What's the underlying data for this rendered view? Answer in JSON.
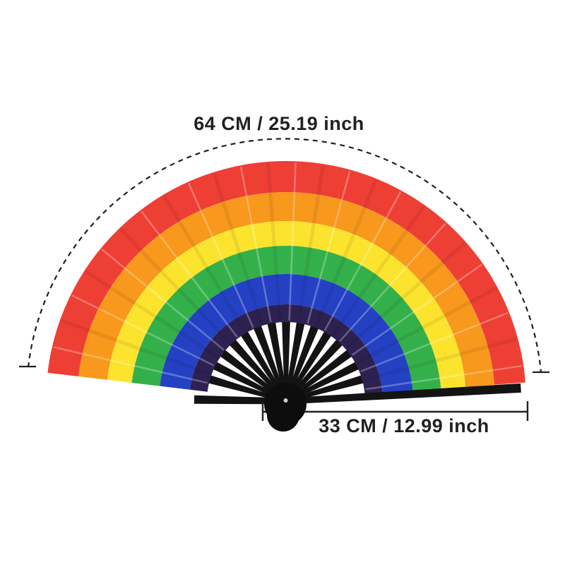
{
  "background": "#ffffff",
  "labels": {
    "width": "64 CM / 25.19 inch",
    "length": "33 CM / 12.99 inch"
  },
  "fan": {
    "bands": [
      {
        "name": "red",
        "color": "#ee3f35"
      },
      {
        "name": "orange",
        "color": "#f8981c"
      },
      {
        "name": "yellow",
        "color": "#fce42e"
      },
      {
        "name": "green",
        "color": "#34b04a"
      },
      {
        "name": "blue",
        "color": "#2441c4"
      },
      {
        "name": "purple",
        "color": "#2d2152"
      }
    ],
    "rib_color": "#131313",
    "knob_color": "#0d0d0d",
    "rivet_color": "#cfcfcf"
  },
  "annotations": {
    "line_color": "#231f20",
    "text_color": "#231f20"
  }
}
